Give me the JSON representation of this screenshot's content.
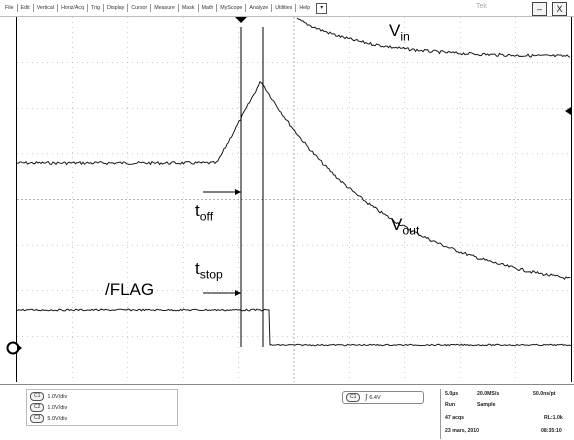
{
  "menubar": {
    "items": [
      "File",
      "Edit",
      "Vertical",
      "Horiz/Acq",
      "Trig",
      "Display",
      "Cursor",
      "Measure",
      "Mask",
      "Math",
      "MyScope",
      "Analyze",
      "Utilities",
      "Help"
    ],
    "dropdown_glyph": "▾",
    "brand": "Tek",
    "minimize_label": "–",
    "close_label": "X"
  },
  "screen": {
    "colors": {
      "trace": "#1a1a1a",
      "grid": "#9a9a9a",
      "marker": "#000000"
    },
    "annotations": {
      "vin": {
        "main": "V",
        "sub": "in"
      },
      "vout": {
        "main": "V",
        "sub": "out"
      },
      "toff": {
        "main": "t",
        "sub": "off"
      },
      "tstop": {
        "main": "t",
        "sub": "stop"
      },
      "flag": "/FLAG"
    },
    "ground_marker_icon": "channel-ground-marker-icon",
    "trigger_marker_icon": "trigger-position-icon"
  },
  "status": {
    "channels": [
      {
        "id": "C1",
        "scale": "1.0V/div"
      },
      {
        "id": "C2",
        "scale": "1.0V/div"
      },
      {
        "id": "C3",
        "scale": "5.0V/div"
      }
    ],
    "trigger": {
      "channel": "C1",
      "edge_glyph": "∫",
      "level": "6.4V"
    },
    "acquisition": {
      "timebase": "5.0µs",
      "sample_rate": "20.0MS/s",
      "resolution": "50.0ns/pt",
      "state": "Run",
      "mode": "Sample",
      "acqs": "47 acqs",
      "record": "RL:1.0k",
      "date": "23 mars, 2010",
      "time": "08:35:10"
    }
  }
}
